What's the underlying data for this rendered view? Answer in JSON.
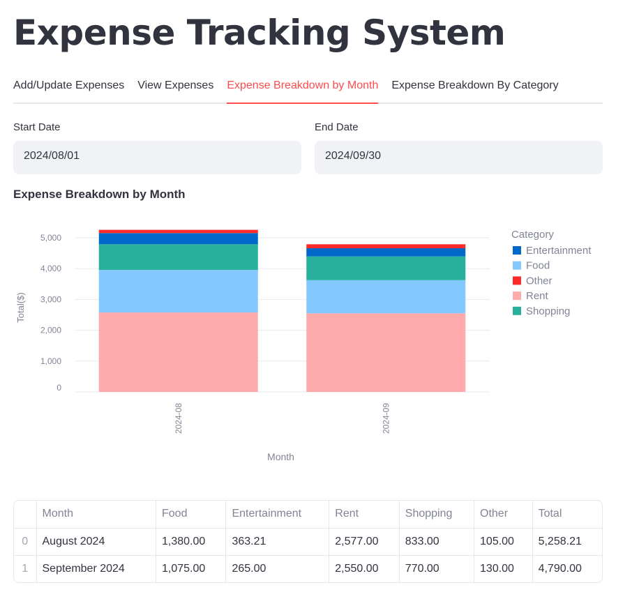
{
  "app": {
    "title": "Expense Tracking System"
  },
  "tabs": [
    {
      "label": "Add/Update Expenses",
      "active": false
    },
    {
      "label": "View Expenses",
      "active": false
    },
    {
      "label": "Expense Breakdown by Month",
      "active": true
    },
    {
      "label": "Expense Breakdown By Category",
      "active": false
    }
  ],
  "filters": {
    "start_label": "Start Date",
    "start_value": "2024/08/01",
    "end_label": "End Date",
    "end_value": "2024/09/30"
  },
  "section_title": "Expense Breakdown by Month",
  "colors": {
    "accent": "#ff4b4b",
    "Entertainment": "#0068c9",
    "Food": "#83c9ff",
    "Other": "#ff2b2b",
    "Rent": "#ffabab",
    "Shopping": "#29b09d"
  },
  "chart_data": {
    "type": "bar",
    "stacked": true,
    "categories": [
      "2024-08",
      "2024-09"
    ],
    "series": [
      {
        "name": "Rent",
        "values": [
          2577.0,
          2550.0
        ]
      },
      {
        "name": "Food",
        "values": [
          1380.0,
          1075.0
        ]
      },
      {
        "name": "Shopping",
        "values": [
          833.0,
          770.0
        ]
      },
      {
        "name": "Entertainment",
        "values": [
          363.21,
          265.0
        ]
      },
      {
        "name": "Other",
        "values": [
          105.0,
          130.0
        ]
      }
    ],
    "legend_title": "Category",
    "legend_order": [
      "Entertainment",
      "Food",
      "Other",
      "Rent",
      "Shopping"
    ],
    "legend_position": "right",
    "xlabel": "Month",
    "ylabel": "Total($)",
    "yticks": [
      "0",
      "1,000",
      "2,000",
      "3,000",
      "4,000",
      "5,000"
    ],
    "ylim": [
      0,
      5000
    ],
    "grid": true
  },
  "table": {
    "columns": [
      "",
      "Month",
      "Food",
      "Entertainment",
      "Rent",
      "Shopping",
      "Other",
      "Total"
    ],
    "rows": [
      [
        "0",
        "August 2024",
        "1,380.00",
        "363.21",
        "2,577.00",
        "833.00",
        "105.00",
        "5,258.21"
      ],
      [
        "1",
        "September 2024",
        "1,075.00",
        "265.00",
        "2,550.00",
        "770.00",
        "130.00",
        "4,790.00"
      ]
    ]
  }
}
